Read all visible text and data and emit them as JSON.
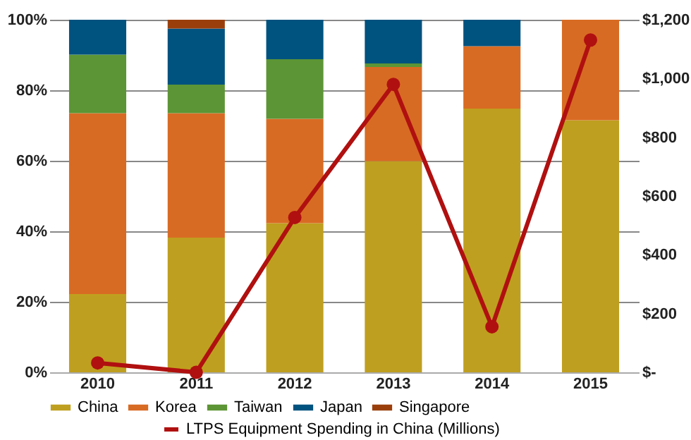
{
  "chart_data": {
    "type": "bar",
    "stacked": true,
    "categories": [
      "2010",
      "2011",
      "2012",
      "2013",
      "2014",
      "2015"
    ],
    "series": [
      {
        "name": "China",
        "color": "#bf9f1f",
        "values": [
          22.2,
          38.2,
          42.3,
          59.9,
          74.8,
          71.5
        ]
      },
      {
        "name": "Korea",
        "color": "#d86b23",
        "values": [
          51.3,
          35.3,
          29.6,
          26.7,
          17.7,
          28.5
        ]
      },
      {
        "name": "Taiwan",
        "color": "#5c9535",
        "values": [
          16.6,
          8.1,
          16.9,
          1.0,
          0,
          0
        ]
      },
      {
        "name": "Japan",
        "color": "#00527f",
        "values": [
          9.9,
          15.9,
          11.2,
          12.4,
          7.5,
          0
        ]
      },
      {
        "name": "Singapore",
        "color": "#9a3f0c",
        "values": [
          0,
          2.5,
          0,
          0,
          0,
          0
        ]
      },
      {
        "name": "LTPS Equipment Spending in China (Millions)",
        "type": "line",
        "axis": "y2",
        "color": "#b01010",
        "marker": "circle",
        "line_style": "solid",
        "values": [
          32,
          0,
          527,
          980,
          155,
          1131
        ]
      }
    ],
    "ylim": [
      0,
      100
    ],
    "yticks": [
      {
        "value": 0,
        "label": "0%"
      },
      {
        "value": 20,
        "label": "20%"
      },
      {
        "value": 40,
        "label": "40%"
      },
      {
        "value": 60,
        "label": "60%"
      },
      {
        "value": 80,
        "label": "80%"
      },
      {
        "value": 100,
        "label": "100%"
      }
    ],
    "y2lim": [
      0,
      1200
    ],
    "y2ticks": [
      {
        "value": 0,
        "label": "$-"
      },
      {
        "value": 200,
        "label": "$200"
      },
      {
        "value": 400,
        "label": "$400"
      },
      {
        "value": 600,
        "label": "$600"
      },
      {
        "value": 800,
        "label": "$800"
      },
      {
        "value": 1000,
        "label": "$1,000"
      },
      {
        "value": 1200,
        "label": "$1,200"
      }
    ],
    "grid": "y",
    "legend": "bottom"
  }
}
